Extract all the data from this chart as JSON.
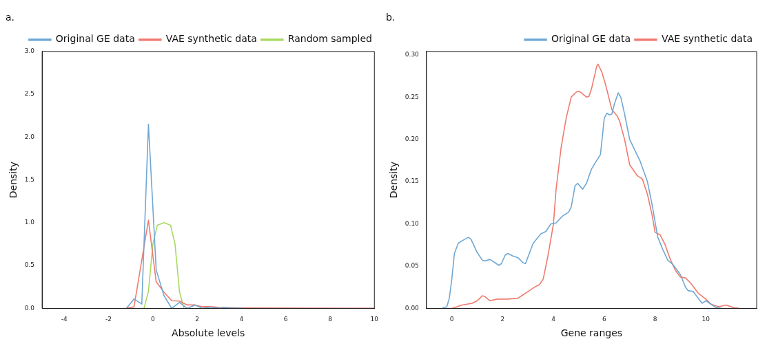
{
  "chart_data": [
    {
      "type": "line",
      "title": "a.",
      "xlabel": "Absolute levels",
      "ylabel": "Density",
      "xlim": [
        -5,
        10
      ],
      "ylim": [
        0,
        3
      ],
      "xticks": [
        -4,
        -2,
        0,
        2,
        4,
        6,
        8,
        10
      ],
      "yticks": [
        {
          "value": 0,
          "label": "0.0"
        },
        {
          "value": 0.5,
          "label": "0.5"
        },
        {
          "value": 1,
          "label": "1.0"
        },
        {
          "value": 1.5,
          "label": "1.5"
        },
        {
          "value": 2,
          "label": "2.0"
        },
        {
          "value": 2.5,
          "label": "2.5"
        },
        {
          "value": 3,
          "label": "3.0"
        }
      ],
      "grid": false,
      "legend": "top right",
      "series": [
        {
          "name": "Original GE data",
          "color": "#6fa8d4",
          "x": [
            -1.2,
            -0.85,
            -0.5,
            -0.2,
            0.15,
            0.5,
            0.85,
            1.2,
            1.55,
            1.9,
            2.25,
            2.6,
            3,
            3.2,
            3.6,
            4
          ],
          "values": [
            0,
            0.11,
            0.05,
            2.15,
            0.45,
            0.15,
            0,
            0.07,
            0,
            0.04,
            0,
            0.015,
            0,
            0.01,
            0,
            0.005
          ]
        },
        {
          "name": "VAE synthetic data",
          "color": "#f07a6e",
          "x": [
            -1.2,
            -0.85,
            -0.2,
            0.15,
            0.5,
            0.85,
            1.2,
            1.55,
            1.9,
            2.25,
            2.6,
            3,
            4,
            10
          ],
          "values": [
            0,
            0.02,
            1.03,
            0.31,
            0.19,
            0.09,
            0.085,
            0.04,
            0.04,
            0.02,
            0.02,
            0.01,
            0.005,
            0
          ]
        },
        {
          "name": "Random sampled",
          "color": "#a8d860",
          "x": [
            -0.4,
            -0.2,
            0,
            0.2,
            0.5,
            0.8,
            1,
            1.2,
            1.4
          ],
          "values": [
            0,
            0.2,
            0.75,
            0.97,
            1,
            0.97,
            0.75,
            0.2,
            0
          ]
        }
      ]
    },
    {
      "type": "line",
      "title": "b.",
      "xlabel": "Gene ranges",
      "ylabel": "Density",
      "xlim": [
        -1,
        12
      ],
      "ylim": [
        0,
        0.304
      ],
      "xticks": [
        0,
        2,
        4,
        6,
        8,
        10
      ],
      "yticks": [
        {
          "value": 0,
          "label": "0.00"
        },
        {
          "value": 0.05,
          "label": "0.05"
        },
        {
          "value": 0.1,
          "label": "0.10"
        },
        {
          "value": 0.15,
          "label": "0.15"
        },
        {
          "value": 0.2,
          "label": "0.20"
        },
        {
          "value": 0.25,
          "label": "0.25"
        },
        {
          "value": 0.3,
          "label": "0.30"
        }
      ],
      "grid": false,
      "legend": "top right",
      "series": [
        {
          "name": "Original GE data",
          "color": "#6fa8d4",
          "x": [
            -0.4,
            -0.2,
            -0.1,
            0,
            0.1,
            0.25,
            0.4,
            0.65,
            0.75,
            1,
            1.2,
            1.3,
            1.5,
            1.7,
            1.85,
            1.95,
            2.1,
            2.2,
            2.4,
            2.6,
            2.8,
            2.9,
            3.2,
            3.5,
            3.7,
            3.9,
            4.1,
            4.35,
            4.6,
            4.7,
            4.85,
            4.95,
            5.15,
            5.3,
            5.5,
            5.7,
            5.85,
            6,
            6.1,
            6.2,
            6.3,
            6.4,
            6.55,
            6.65,
            6.8,
            7,
            7.4,
            7.7,
            7.9,
            8.1,
            8.3,
            8.5,
            8.7,
            9,
            9.2,
            9.3,
            9.5,
            9.7,
            9.85,
            10,
            10.2,
            10.4,
            10.6
          ],
          "values": [
            0,
            0.002,
            0.012,
            0.035,
            0.065,
            0.077,
            0.08,
            0.084,
            0.082,
            0.066,
            0.057,
            0.056,
            0.058,
            0.054,
            0.051,
            0.053,
            0.063,
            0.065,
            0.062,
            0.06,
            0.054,
            0.053,
            0.077,
            0.088,
            0.091,
            0.1,
            0.101,
            0.109,
            0.114,
            0.12,
            0.145,
            0.148,
            0.141,
            0.148,
            0.165,
            0.175,
            0.182,
            0.225,
            0.231,
            0.229,
            0.23,
            0.242,
            0.255,
            0.25,
            0.23,
            0.2,
            0.175,
            0.15,
            0.12,
            0.085,
            0.07,
            0.057,
            0.052,
            0.04,
            0.025,
            0.021,
            0.02,
            0.012,
            0.006,
            0.009,
            0.005,
            0.001,
            0
          ]
        },
        {
          "name": "VAE synthetic data",
          "color": "#f07a6e",
          "x": [
            0,
            0.2,
            0.4,
            0.8,
            1,
            1.2,
            1.3,
            1.5,
            1.8,
            2.2,
            2.6,
            2.8,
            3,
            3.3,
            3.45,
            3.6,
            3.8,
            4,
            4.1,
            4.3,
            4.5,
            4.7,
            4.9,
            5,
            5.1,
            5.3,
            5.4,
            5.5,
            5.7,
            5.75,
            5.9,
            6.05,
            6.3,
            6.5,
            6.6,
            6.8,
            7,
            7.3,
            7.5,
            7.7,
            7.9,
            8,
            8.2,
            8.4,
            8.6,
            8.8,
            9,
            9.2,
            9.4,
            9.7,
            10,
            10.2,
            10.5,
            10.8,
            11.1,
            11.3
          ],
          "values": [
            0,
            0.002,
            0.004,
            0.006,
            0.009,
            0.015,
            0.014,
            0.009,
            0.011,
            0.011,
            0.012,
            0.016,
            0.02,
            0.026,
            0.028,
            0.035,
            0.065,
            0.1,
            0.14,
            0.19,
            0.225,
            0.25,
            0.256,
            0.257,
            0.255,
            0.25,
            0.251,
            0.26,
            0.286,
            0.289,
            0.28,
            0.265,
            0.235,
            0.228,
            0.222,
            0.2,
            0.17,
            0.157,
            0.153,
            0.135,
            0.108,
            0.09,
            0.087,
            0.075,
            0.058,
            0.045,
            0.037,
            0.036,
            0.03,
            0.018,
            0.011,
            0.005,
            0.002,
            0.004,
            0.001,
            0
          ]
        }
      ]
    }
  ]
}
